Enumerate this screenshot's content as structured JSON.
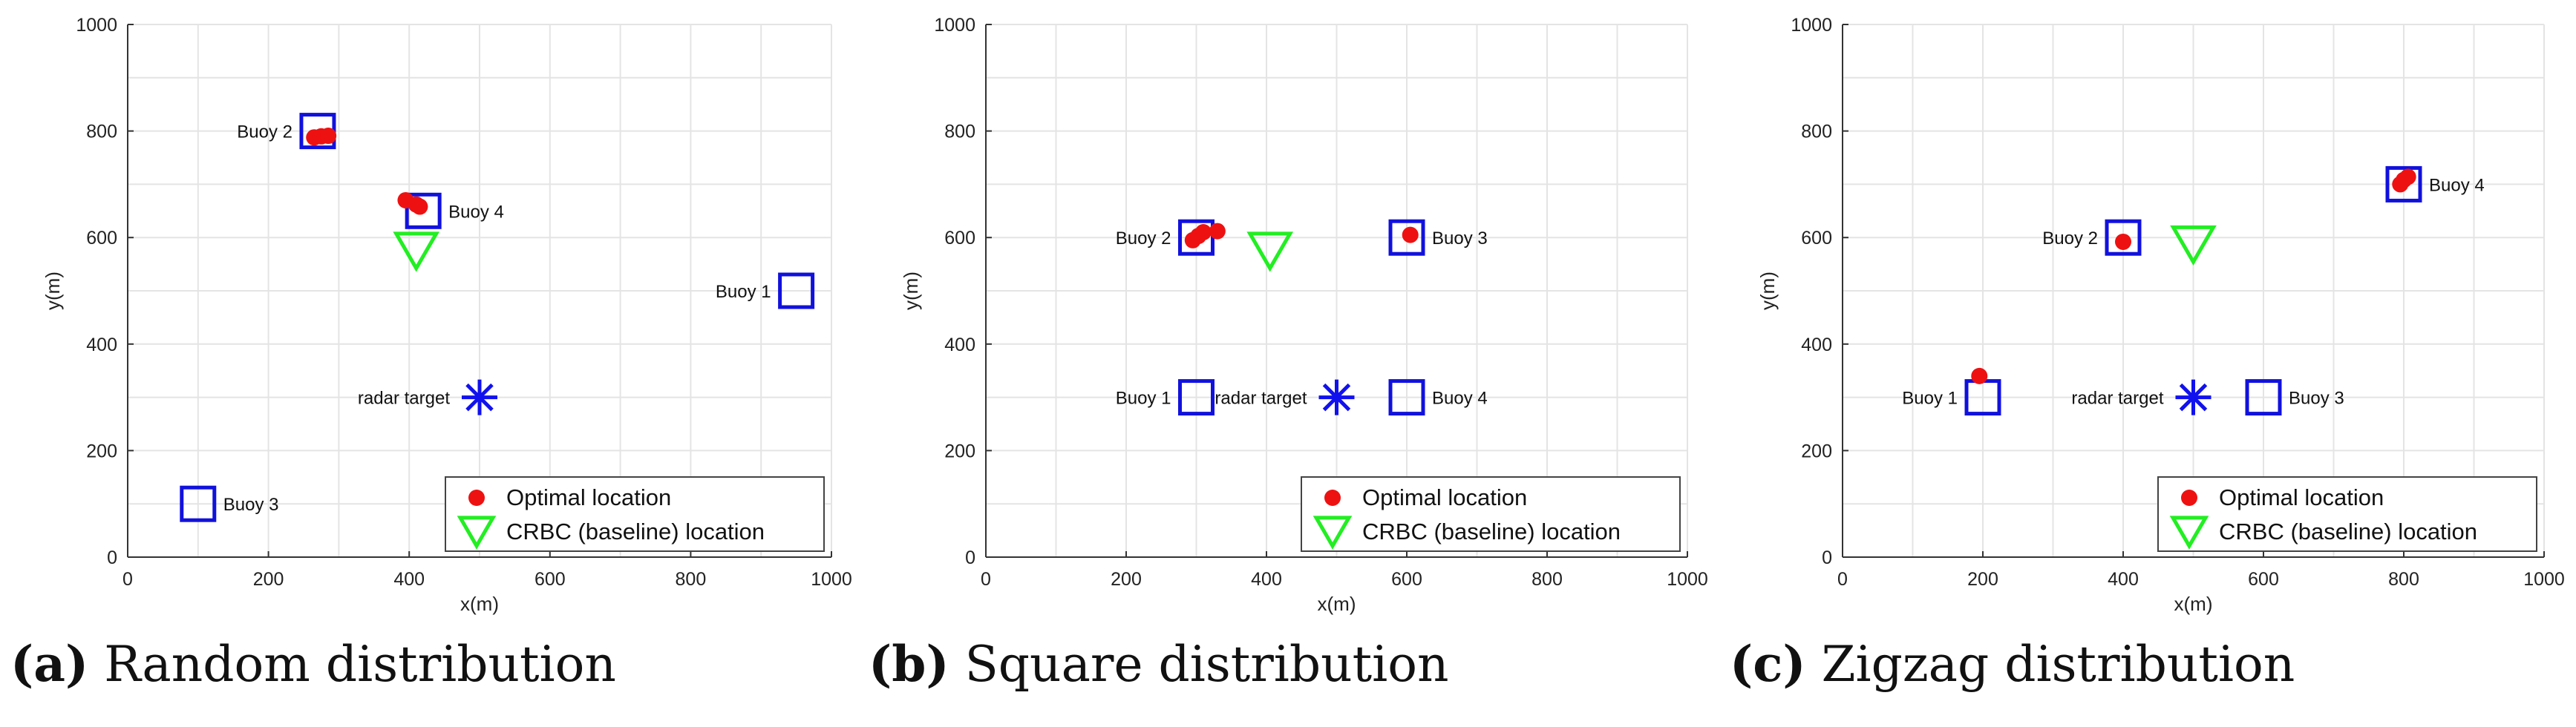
{
  "chart_data": [
    {
      "type": "scatter",
      "xlabel": "x(m)",
      "ylabel": "y(m)",
      "xlim": [
        0,
        1000
      ],
      "ylim": [
        0,
        1000
      ],
      "xticks": [
        0,
        200,
        400,
        600,
        800,
        1000
      ],
      "yticks": [
        0,
        200,
        400,
        600,
        800,
        1000
      ],
      "grid": true,
      "legend_position": "bottom-right",
      "legend": [
        {
          "label": "Optimal location",
          "marker": "filled-circle",
          "color": "#ee1111"
        },
        {
          "label": "CRBC (baseline) location",
          "marker": "down-triangle",
          "color": "#22ee22"
        }
      ],
      "buoys": [
        {
          "label": "Buoy 1",
          "x": 950,
          "y": 500,
          "label_side": "left"
        },
        {
          "label": "Buoy 2",
          "x": 270,
          "y": 800,
          "label_side": "left"
        },
        {
          "label": "Buoy 3",
          "x": 100,
          "y": 100,
          "label_side": "right"
        },
        {
          "label": "Buoy 4",
          "x": 420,
          "y": 650,
          "label_side": "right"
        }
      ],
      "radar_target": {
        "label": "radar target",
        "x": 500,
        "y": 300
      },
      "optimal_locations": [
        {
          "x": 265,
          "y": 788
        },
        {
          "x": 275,
          "y": 790
        },
        {
          "x": 285,
          "y": 791
        },
        {
          "x": 395,
          "y": 670
        },
        {
          "x": 410,
          "y": 662
        },
        {
          "x": 415,
          "y": 658
        }
      ],
      "baseline_location": {
        "x": 410,
        "y": 578
      },
      "caption_letter": "(a)",
      "caption_text": "Random distribution"
    },
    {
      "type": "scatter",
      "xlabel": "x(m)",
      "ylabel": "y(m)",
      "xlim": [
        0,
        1000
      ],
      "ylim": [
        0,
        1000
      ],
      "xticks": [
        0,
        200,
        400,
        600,
        800,
        1000
      ],
      "yticks": [
        0,
        200,
        400,
        600,
        800,
        1000
      ],
      "grid": true,
      "legend_position": "bottom-right",
      "legend": [
        {
          "label": "Optimal location",
          "marker": "filled-circle",
          "color": "#ee1111"
        },
        {
          "label": "CRBC (baseline) location",
          "marker": "down-triangle",
          "color": "#22ee22"
        }
      ],
      "buoys": [
        {
          "label": "Buoy 1",
          "x": 300,
          "y": 300,
          "label_side": "left"
        },
        {
          "label": "Buoy 2",
          "x": 300,
          "y": 600,
          "label_side": "left"
        },
        {
          "label": "Buoy 3",
          "x": 600,
          "y": 600,
          "label_side": "right"
        },
        {
          "label": "Buoy 4",
          "x": 600,
          "y": 300,
          "label_side": "right"
        }
      ],
      "radar_target": {
        "label": "radar target",
        "x": 500,
        "y": 300
      },
      "optimal_locations": [
        {
          "x": 295,
          "y": 595
        },
        {
          "x": 303,
          "y": 603
        },
        {
          "x": 310,
          "y": 610
        },
        {
          "x": 330,
          "y": 612
        },
        {
          "x": 605,
          "y": 605
        }
      ],
      "baseline_location": {
        "x": 405,
        "y": 578
      },
      "caption_letter": "(b)",
      "caption_text": "Square distribution"
    },
    {
      "type": "scatter",
      "xlabel": "x(m)",
      "ylabel": "y(m)",
      "xlim": [
        0,
        1000
      ],
      "ylim": [
        0,
        1000
      ],
      "xticks": [
        0,
        200,
        400,
        600,
        800,
        1000
      ],
      "yticks": [
        0,
        200,
        400,
        600,
        800,
        1000
      ],
      "grid": true,
      "legend_position": "bottom-right",
      "legend": [
        {
          "label": "Optimal location",
          "marker": "filled-circle",
          "color": "#ee1111"
        },
        {
          "label": "CRBC (baseline) location",
          "marker": "down-triangle",
          "color": "#22ee22"
        }
      ],
      "buoys": [
        {
          "label": "Buoy 1",
          "x": 200,
          "y": 300,
          "label_side": "left"
        },
        {
          "label": "Buoy 2",
          "x": 400,
          "y": 600,
          "label_side": "left"
        },
        {
          "label": "Buoy 3",
          "x": 600,
          "y": 300,
          "label_side": "right"
        },
        {
          "label": "Buoy 4",
          "x": 800,
          "y": 700,
          "label_side": "right"
        }
      ],
      "radar_target": {
        "label": "radar target",
        "x": 500,
        "y": 300
      },
      "optimal_locations": [
        {
          "x": 195,
          "y": 340
        },
        {
          "x": 400,
          "y": 592
        },
        {
          "x": 795,
          "y": 700
        },
        {
          "x": 800,
          "y": 708
        },
        {
          "x": 806,
          "y": 714
        }
      ],
      "baseline_location": {
        "x": 500,
        "y": 590
      },
      "caption_letter": "(c)",
      "caption_text": "Zigzag distribution"
    }
  ],
  "colors": {
    "buoy": "#1111dd",
    "radar": "#1111ee",
    "optimal": "#ee1111",
    "baseline": "#22ee22",
    "grid": "#e4e4e4",
    "axis": "#333333",
    "tick_text": "#222222"
  }
}
